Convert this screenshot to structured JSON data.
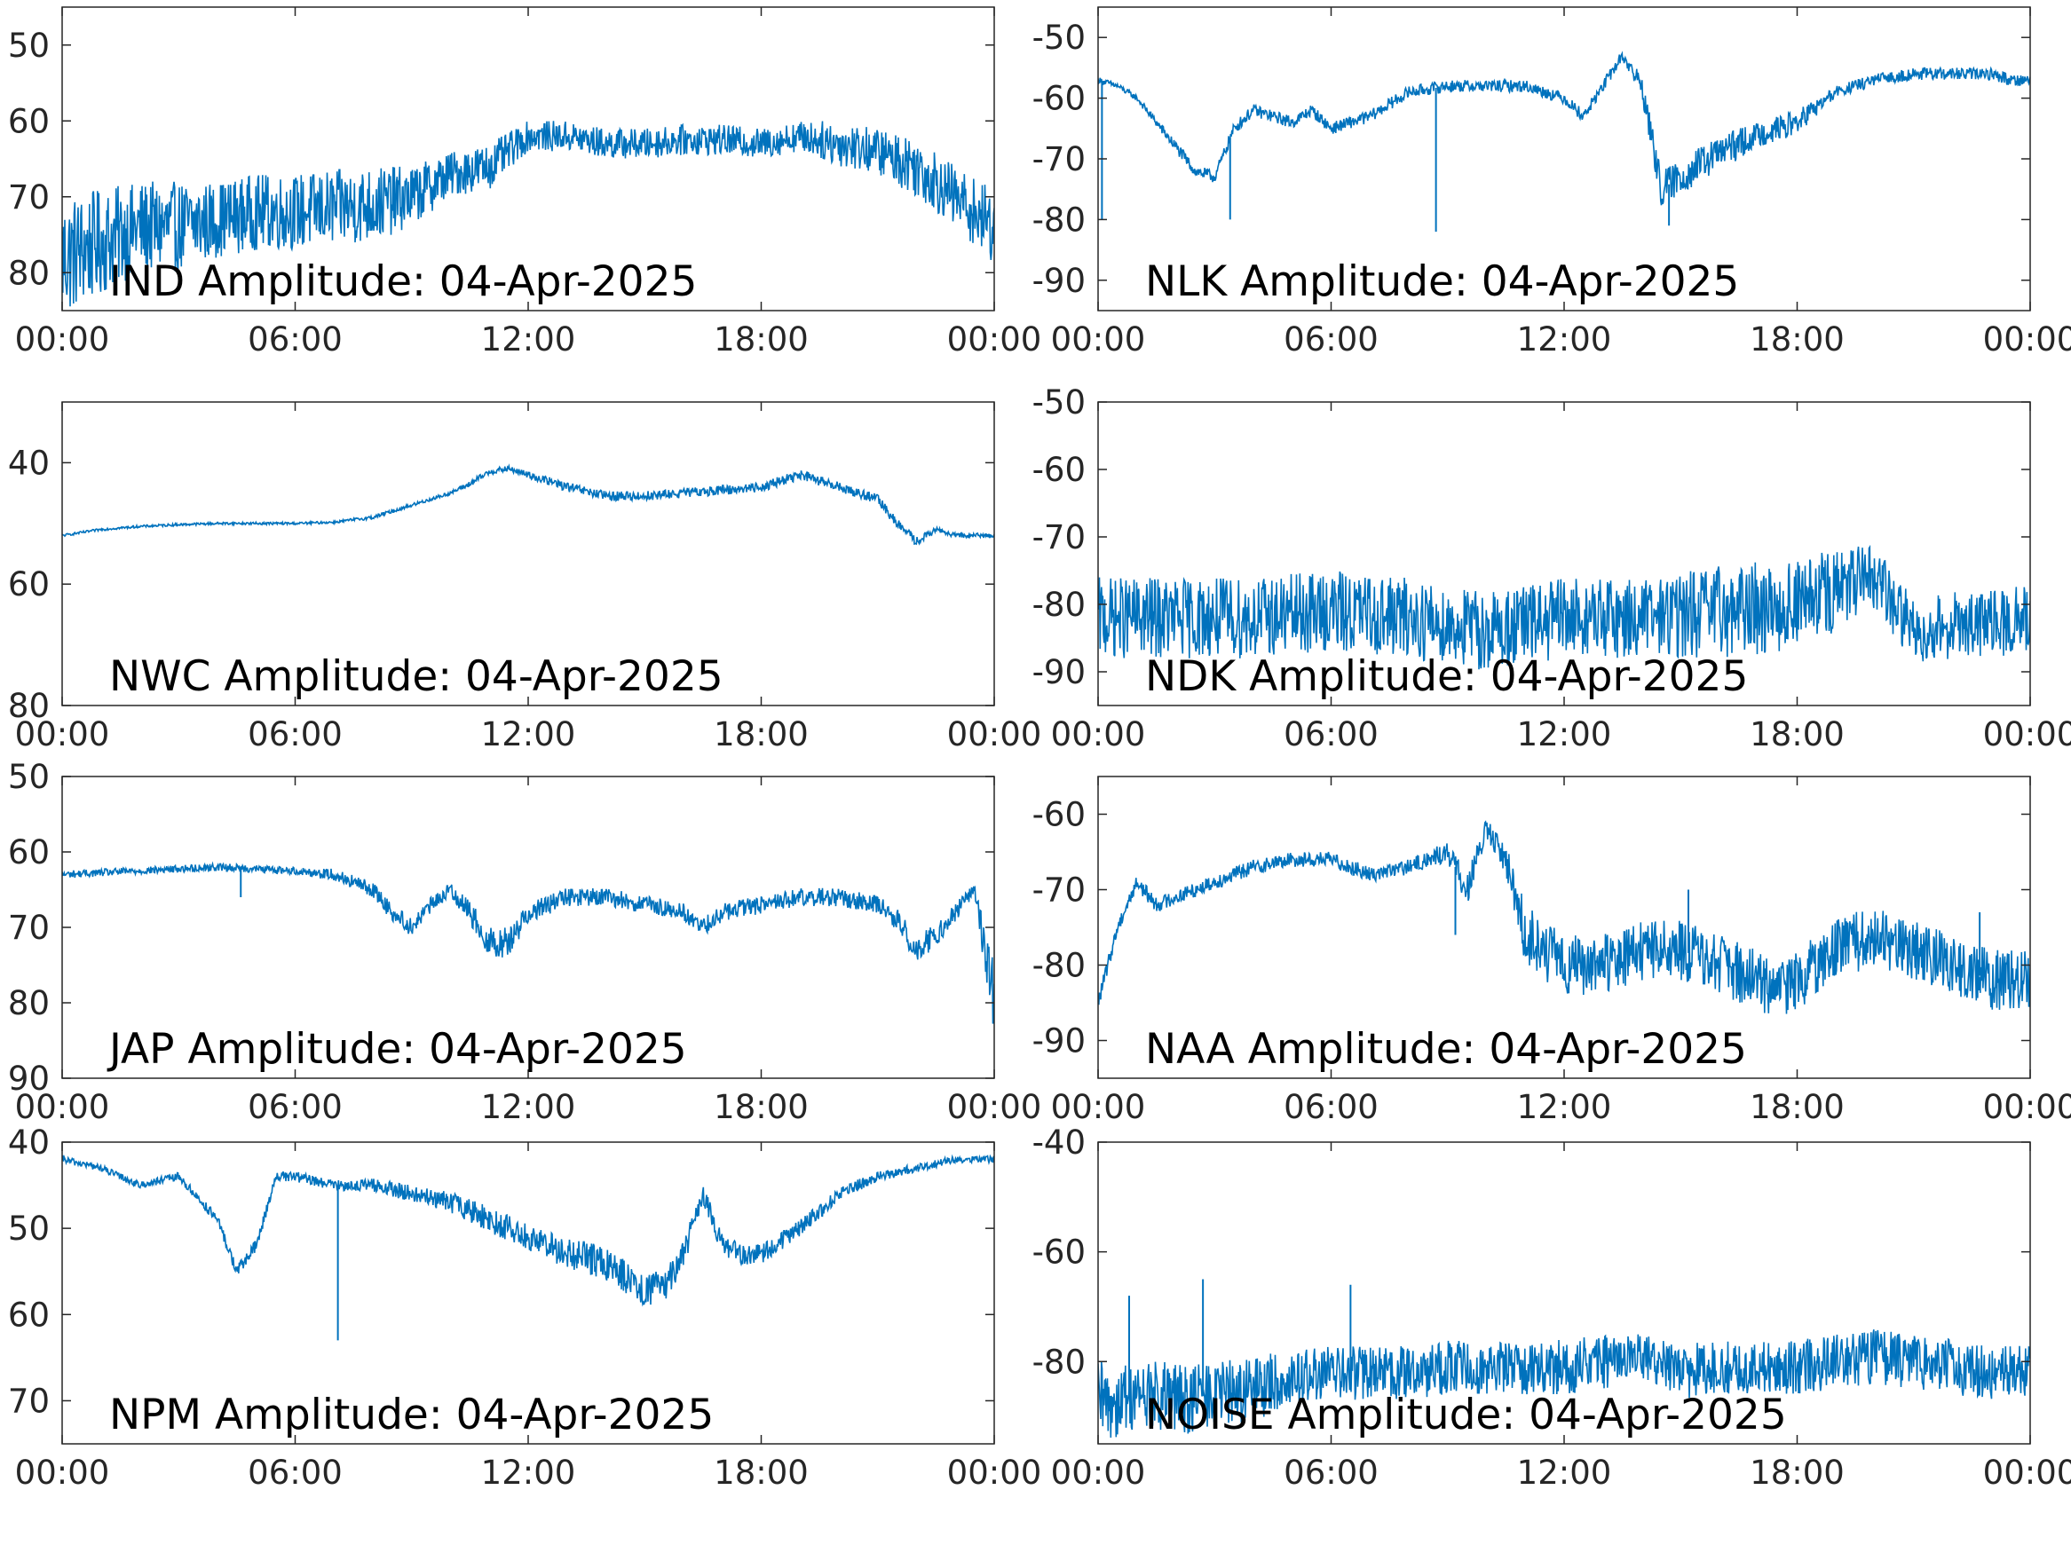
{
  "figure": {
    "time_ticks": [
      "00:00",
      "06:00",
      "12:00",
      "18:00",
      "00:00"
    ],
    "line_color": "#0072BD",
    "axis_color": "#262626"
  },
  "chart_data": [
    {
      "type": "line",
      "title": "IND Amplitude: 04-Apr-2025",
      "x_hours": [
        0,
        1,
        2,
        3,
        4,
        5,
        6,
        7,
        8,
        9,
        10,
        11,
        12,
        13,
        14,
        15,
        16,
        17,
        18,
        19,
        20,
        21,
        22,
        23,
        24
      ],
      "y_center": [
        -78,
        -76,
        -74,
        -74,
        -73,
        -72,
        -72,
        -71.5,
        -71,
        -70,
        -67,
        -66,
        -62,
        -62,
        -63,
        -63,
        -62.5,
        -62.5,
        -63,
        -62,
        -63,
        -64,
        -66,
        -70,
        -74
      ],
      "noise_amp": [
        8,
        7,
        6,
        6,
        5,
        5,
        5,
        5,
        5,
        4,
        3,
        3,
        2,
        2,
        2,
        2,
        2,
        2,
        2,
        2,
        3,
        3,
        4,
        4,
        5
      ],
      "spikes": [],
      "yticks": [
        -50,
        -60,
        -70,
        -80
      ],
      "ytick_labels": [
        "50",
        "60",
        "70",
        "80"
      ],
      "ylim": [
        -85,
        -45
      ]
    },
    {
      "type": "line",
      "title": "NLK Amplitude: 04-Apr-2025",
      "x_hours": [
        0,
        0.5,
        1,
        2,
        2.5,
        3,
        3.5,
        4,
        5,
        5.5,
        6,
        7,
        8,
        9,
        10,
        11,
        12,
        12.5,
        13,
        13.5,
        14,
        14.5,
        15,
        16,
        17,
        18,
        19,
        20,
        21,
        22,
        23,
        23.5,
        24
      ],
      "y_center": [
        -57,
        -58,
        -60,
        -68,
        -72,
        -73,
        -65,
        -62,
        -64,
        -62,
        -65,
        -63,
        -59,
        -58,
        -58,
        -58,
        -60,
        -63,
        -58,
        -53,
        -58,
        -75,
        -73,
        -69,
        -66,
        -64,
        -59,
        -57,
        -56,
        -56,
        -56,
        -57,
        -57
      ],
      "noise_amp": [
        0.5,
        0.5,
        0.5,
        1,
        1,
        1,
        1,
        1,
        1,
        1,
        1,
        1,
        1,
        1,
        1,
        1,
        1,
        1,
        1,
        1,
        2,
        3,
        3,
        3,
        2,
        2,
        1,
        1,
        1,
        1,
        1,
        1,
        1
      ],
      "spikes": [
        [
          0.1,
          -80
        ],
        [
          3.4,
          -80
        ],
        [
          8.7,
          -82
        ],
        [
          14.7,
          -81
        ]
      ],
      "yticks": [
        -50,
        -60,
        -70,
        -80,
        -90
      ],
      "ytick_labels": [
        "-50",
        "-60",
        "-70",
        "-80",
        "-90"
      ],
      "ylim": [
        -95,
        -45
      ]
    },
    {
      "type": "line",
      "title": "NWC Amplitude: 04-Apr-2025",
      "x_hours": [
        0,
        1,
        2,
        3,
        4,
        5,
        6,
        7,
        8,
        9,
        10,
        10.5,
        11,
        11.5,
        12,
        13,
        14,
        15,
        16,
        17,
        18,
        19,
        20,
        21,
        21.5,
        22,
        22.5,
        23,
        24
      ],
      "y_center": [
        -52,
        -51,
        -50.5,
        -50.2,
        -50,
        -50,
        -50,
        -49.8,
        -49,
        -47,
        -45,
        -43.5,
        -41.5,
        -41,
        -42,
        -44,
        -45.5,
        -45.5,
        -45,
        -44.5,
        -44,
        -42,
        -44,
        -46,
        -50,
        -53,
        -51,
        -52,
        -52
      ],
      "noise_amp": [
        0.2,
        0.2,
        0.2,
        0.2,
        0.2,
        0.2,
        0.2,
        0.2,
        0.3,
        0.3,
        0.3,
        0.5,
        0.5,
        0.5,
        0.6,
        0.8,
        0.8,
        0.8,
        0.8,
        0.8,
        0.8,
        0.8,
        0.8,
        0.8,
        0.8,
        0.8,
        0.4,
        0.4,
        0.4
      ],
      "spikes": [],
      "yticks": [
        -40,
        -60,
        -80
      ],
      "ytick_labels": [
        "40",
        "60",
        "80"
      ],
      "ylim": [
        -80,
        -30
      ]
    },
    {
      "type": "line",
      "title": "NDK Amplitude: 04-Apr-2025",
      "x_hours": [
        0,
        2,
        4,
        6,
        8,
        10,
        12,
        14,
        16,
        18,
        19,
        20,
        20.5,
        21,
        22,
        23,
        24
      ],
      "y_center": [
        -82,
        -82,
        -82,
        -81,
        -82,
        -84,
        -82,
        -82,
        -81,
        -80,
        -78,
        -76,
        -80,
        -84,
        -83,
        -83,
        -82
      ],
      "noise_amp": [
        6,
        6,
        6,
        6,
        6,
        6,
        6,
        6,
        7,
        7,
        6,
        5,
        5,
        5,
        5,
        5,
        5
      ],
      "spikes": [],
      "yticks": [
        -50,
        -60,
        -70,
        -80,
        -90
      ],
      "ytick_labels": [
        "-50",
        "-60",
        "-70",
        "-80",
        "-90"
      ],
      "ylim": [
        -95,
        -50
      ]
    },
    {
      "type": "line",
      "title": "JAP Amplitude: 04-Apr-2025",
      "x_hours": [
        0,
        2,
        4,
        6,
        7,
        8,
        8.5,
        9,
        9.5,
        10,
        10.5,
        11,
        11.5,
        12,
        13,
        14,
        15,
        16,
        16.5,
        17,
        18,
        19,
        20,
        21,
        21.5,
        22,
        22.5,
        23,
        23.5,
        24
      ],
      "y_center": [
        -63,
        -62.5,
        -62,
        -62.5,
        -63,
        -65,
        -68,
        -70,
        -67,
        -65,
        -68,
        -72,
        -72,
        -68,
        -66,
        -66,
        -67,
        -68,
        -70,
        -68,
        -67,
        -66,
        -66,
        -67,
        -69,
        -73,
        -71,
        -68,
        -65,
        -80
      ],
      "noise_amp": [
        0.5,
        0.5,
        0.5,
        0.5,
        0.8,
        1,
        1.2,
        1.2,
        1,
        1,
        1.5,
        2,
        2,
        1.5,
        1.2,
        1.2,
        1.2,
        1.2,
        1.2,
        1.2,
        1.2,
        1.2,
        1.2,
        1.2,
        1.5,
        1.8,
        1.5,
        1.2,
        1,
        5
      ],
      "spikes": [
        [
          4.6,
          -66
        ]
      ],
      "yticks": [
        -50,
        -60,
        -70,
        -80,
        -90
      ],
      "ytick_labels": [
        "50",
        "60",
        "70",
        "80",
        "90"
      ],
      "ylim": [
        -90,
        -50
      ]
    },
    {
      "type": "line",
      "title": "NAA Amplitude: 04-Apr-2025",
      "x_hours": [
        0,
        0.5,
        1,
        1.5,
        2,
        3,
        4,
        5,
        6,
        7,
        8,
        9,
        9.5,
        10,
        10.5,
        11,
        12,
        13,
        14,
        15,
        16,
        17,
        17.5,
        18,
        19,
        20,
        21,
        22,
        23,
        24
      ],
      "y_center": [
        -85,
        -75,
        -69,
        -72,
        -71,
        -69,
        -67,
        -66,
        -66,
        -68,
        -67,
        -65,
        -70,
        -62,
        -66,
        -76,
        -80,
        -80,
        -78,
        -78,
        -80,
        -82,
        -84,
        -82,
        -78,
        -76,
        -78,
        -80,
        -82,
        -82
      ],
      "noise_amp": [
        1,
        1,
        1,
        1,
        1,
        1,
        1,
        1,
        1,
        1,
        1,
        1.5,
        2,
        1.5,
        2,
        4,
        4,
        4,
        4,
        4,
        4,
        4,
        4,
        4,
        4,
        4,
        4,
        4,
        4,
        4
      ],
      "spikes": [
        [
          9.2,
          -76
        ],
        [
          15.2,
          -70
        ],
        [
          22.7,
          -73
        ]
      ],
      "yticks": [
        -60,
        -70,
        -80,
        -90
      ],
      "ytick_labels": [
        "-60",
        "-70",
        "-80",
        "-90"
      ],
      "ylim": [
        -95,
        -55
      ]
    },
    {
      "type": "line",
      "title": "NPM Amplitude: 04-Apr-2025",
      "x_hours": [
        0,
        1,
        2,
        3,
        4,
        4.5,
        5,
        5.5,
        6,
        7,
        8,
        9,
        10,
        11,
        12,
        13,
        14,
        15,
        15.5,
        16,
        16.5,
        17,
        17.5,
        18,
        19,
        20,
        21,
        22,
        23,
        24
      ],
      "y_center": [
        -42,
        -43,
        -45,
        -44,
        -49,
        -55,
        -52,
        -44,
        -44,
        -45,
        -45,
        -46,
        -47,
        -49,
        -51,
        -53,
        -54,
        -57,
        -57,
        -53,
        -46,
        -52,
        -53,
        -53,
        -50,
        -46,
        -44,
        -43,
        -42,
        -42
      ],
      "noise_amp": [
        0.4,
        0.4,
        0.4,
        0.5,
        0.6,
        0.8,
        0.8,
        0.6,
        0.6,
        0.6,
        0.8,
        1,
        1.2,
        1.5,
        1.5,
        1.8,
        2,
        2,
        2,
        1.6,
        1.2,
        1.2,
        1.2,
        1.2,
        1,
        0.8,
        0.6,
        0.5,
        0.4,
        0.4
      ],
      "spikes": [
        [
          7.1,
          -63
        ]
      ],
      "yticks": [
        -40,
        -50,
        -60,
        -70
      ],
      "ytick_labels": [
        "40",
        "50",
        "60",
        "70"
      ],
      "ylim": [
        -75,
        -40
      ]
    },
    {
      "type": "line",
      "title": "NOISE Amplitude: 04-Apr-2025",
      "x_hours": [
        0,
        1,
        2,
        3,
        4,
        5,
        6,
        7,
        8,
        9,
        10,
        11,
        12,
        13,
        14,
        15,
        16,
        17,
        18,
        19,
        20,
        21,
        22,
        23,
        24
      ],
      "y_center": [
        -88,
        -86,
        -87,
        -86,
        -85,
        -83,
        -82,
        -82,
        -82,
        -81,
        -81,
        -81,
        -81,
        -80,
        -79,
        -82,
        -81,
        -81,
        -81,
        -80,
        -79,
        -80,
        -81,
        -82,
        -82
      ],
      "noise_amp": [
        8,
        6,
        7,
        6,
        6,
        5,
        5,
        5,
        5,
        5,
        5,
        5,
        5,
        5,
        4,
        5,
        5,
        5,
        5,
        5,
        5,
        5,
        5,
        5,
        5
      ],
      "spikes": [
        [
          0.8,
          -68
        ],
        [
          2.7,
          -65
        ],
        [
          6.5,
          -66
        ]
      ],
      "yticks": [
        -40,
        -60,
        -80
      ],
      "ytick_labels": [
        "-40",
        "-60",
        "-80"
      ],
      "ylim": [
        -95,
        -40
      ]
    }
  ]
}
